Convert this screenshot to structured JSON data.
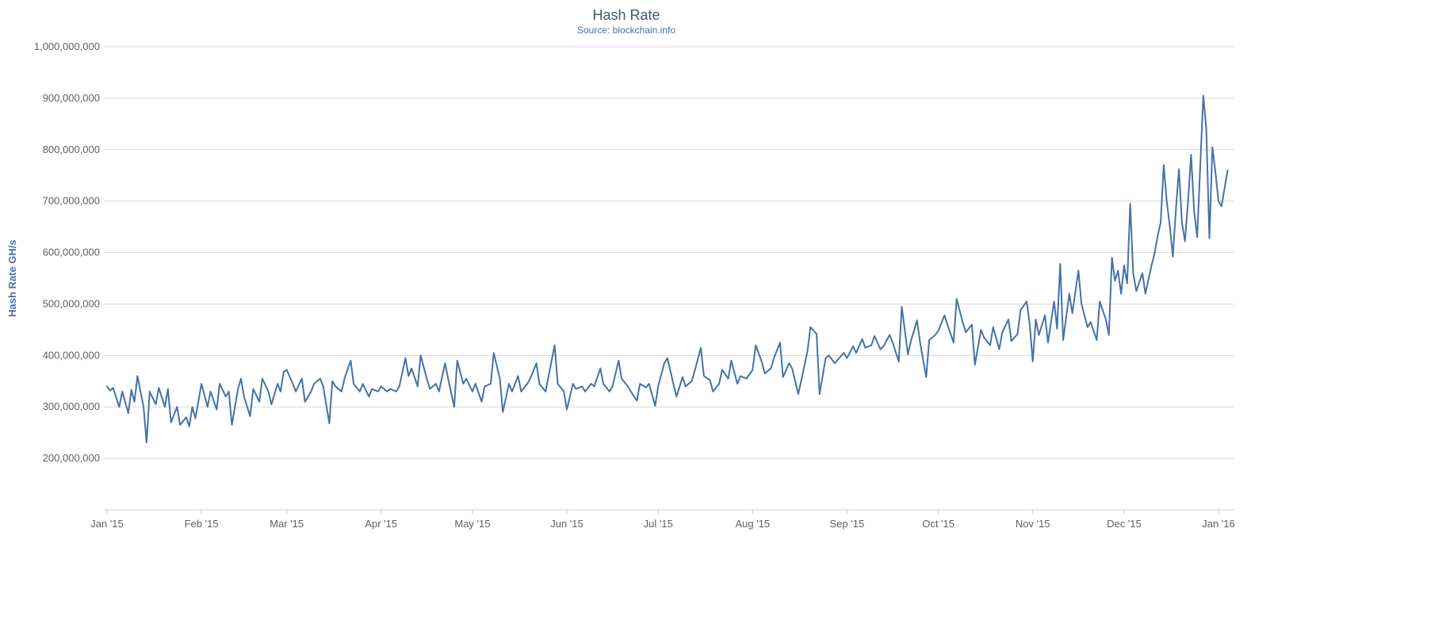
{
  "colors": {
    "series": "#4572A7",
    "title": "#3E576F",
    "subtitle": "#4572A7",
    "axis_text": "#606060",
    "grid": "#D8D8D8",
    "axis_line": "#C0D0E0",
    "y_axis_title": "#4572A7"
  },
  "chart_data": {
    "type": "line",
    "title": "Hash Rate",
    "subtitle": "Source: blockchain.info",
    "xlabel": "",
    "ylabel": "Hash Rate GH/s",
    "ylim": [
      100000000.0,
      1000000000.0
    ],
    "grid": true,
    "legend": false,
    "x_unit": "days since 2015-01-01",
    "y_unit": "GH/s",
    "y_ticks": [
      {
        "value": 200000000.0,
        "label": "200,000,000"
      },
      {
        "value": 300000000.0,
        "label": "300,000,000"
      },
      {
        "value": 400000000.0,
        "label": "400,000,000"
      },
      {
        "value": 500000000.0,
        "label": "500,000,000"
      },
      {
        "value": 600000000.0,
        "label": "600,000,000"
      },
      {
        "value": 700000000.0,
        "label": "700,000,000"
      },
      {
        "value": 800000000.0,
        "label": "800,000,000"
      },
      {
        "value": 900000000.0,
        "label": "900,000,000"
      },
      {
        "value": 1000000000.0,
        "label": "1,000,000,000"
      }
    ],
    "x_ticks": [
      {
        "day": 0,
        "label": "Jan '15"
      },
      {
        "day": 31,
        "label": "Feb '15"
      },
      {
        "day": 59,
        "label": "Mar '15"
      },
      {
        "day": 90,
        "label": "Apr '15"
      },
      {
        "day": 120,
        "label": "May '15"
      },
      {
        "day": 151,
        "label": "Jun '15"
      },
      {
        "day": 181,
        "label": "Jul '15"
      },
      {
        "day": 212,
        "label": "Aug '15"
      },
      {
        "day": 243,
        "label": "Sep '15"
      },
      {
        "day": 273,
        "label": "Oct '15"
      },
      {
        "day": 304,
        "label": "Nov '15"
      },
      {
        "day": 334,
        "label": "Dec '15"
      },
      {
        "day": 365,
        "label": "Jan '16"
      }
    ],
    "series": [
      {
        "name": "Hash Rate",
        "points": [
          [
            0,
            340000000.0
          ],
          [
            1,
            332000000.0
          ],
          [
            2,
            337000000.0
          ],
          [
            4,
            300000000.0
          ],
          [
            5,
            330000000.0
          ],
          [
            7,
            288000000.0
          ],
          [
            8,
            333000000.0
          ],
          [
            9,
            310000000.0
          ],
          [
            10,
            360000000.0
          ],
          [
            12,
            300000000.0
          ],
          [
            13,
            231000000.0
          ],
          [
            14,
            330000000.0
          ],
          [
            16,
            305000000.0
          ],
          [
            17,
            337000000.0
          ],
          [
            19,
            300000000.0
          ],
          [
            20,
            335000000.0
          ],
          [
            21,
            270000000.0
          ],
          [
            23,
            300000000.0
          ],
          [
            24,
            265000000.0
          ],
          [
            26,
            280000000.0
          ],
          [
            27,
            262000000.0
          ],
          [
            28,
            300000000.0
          ],
          [
            29,
            278000000.0
          ],
          [
            30,
            310000000.0
          ],
          [
            31,
            345000000.0
          ],
          [
            33,
            300000000.0
          ],
          [
            34,
            330000000.0
          ],
          [
            36,
            295000000.0
          ],
          [
            37,
            345000000.0
          ],
          [
            39,
            320000000.0
          ],
          [
            40,
            330000000.0
          ],
          [
            41,
            265000000.0
          ],
          [
            43,
            335000000.0
          ],
          [
            44,
            355000000.0
          ],
          [
            45,
            320000000.0
          ],
          [
            47,
            282000000.0
          ],
          [
            48,
            335000000.0
          ],
          [
            50,
            310000000.0
          ],
          [
            51,
            355000000.0
          ],
          [
            53,
            330000000.0
          ],
          [
            54,
            305000000.0
          ],
          [
            56,
            345000000.0
          ],
          [
            57,
            330000000.0
          ],
          [
            58,
            368000000.0
          ],
          [
            59,
            372000000.0
          ],
          [
            61,
            345000000.0
          ],
          [
            62,
            330000000.0
          ],
          [
            64,
            355000000.0
          ],
          [
            65,
            310000000.0
          ],
          [
            67,
            330000000.0
          ],
          [
            68,
            345000000.0
          ],
          [
            70,
            355000000.0
          ],
          [
            71,
            340000000.0
          ],
          [
            73,
            268000000.0
          ],
          [
            74,
            350000000.0
          ],
          [
            75,
            340000000.0
          ],
          [
            77,
            330000000.0
          ],
          [
            78,
            355000000.0
          ],
          [
            80,
            390000000.0
          ],
          [
            81,
            345000000.0
          ],
          [
            83,
            330000000.0
          ],
          [
            84,
            345000000.0
          ],
          [
            86,
            320000000.0
          ],
          [
            87,
            335000000.0
          ],
          [
            89,
            330000000.0
          ],
          [
            90,
            340000000.0
          ],
          [
            92,
            330000000.0
          ],
          [
            93,
            335000000.0
          ],
          [
            95,
            330000000.0
          ],
          [
            96,
            340000000.0
          ],
          [
            98,
            395000000.0
          ],
          [
            99,
            360000000.0
          ],
          [
            100,
            375000000.0
          ],
          [
            102,
            340000000.0
          ],
          [
            103,
            400000000.0
          ],
          [
            105,
            355000000.0
          ],
          [
            106,
            335000000.0
          ],
          [
            108,
            345000000.0
          ],
          [
            109,
            330000000.0
          ],
          [
            111,
            385000000.0
          ],
          [
            112,
            355000000.0
          ],
          [
            114,
            300000000.0
          ],
          [
            115,
            390000000.0
          ],
          [
            117,
            345000000.0
          ],
          [
            118,
            355000000.0
          ],
          [
            120,
            330000000.0
          ],
          [
            121,
            345000000.0
          ],
          [
            123,
            310000000.0
          ],
          [
            124,
            340000000.0
          ],
          [
            126,
            345000000.0
          ],
          [
            127,
            405000000.0
          ],
          [
            129,
            355000000.0
          ],
          [
            130,
            290000000.0
          ],
          [
            132,
            345000000.0
          ],
          [
            133,
            330000000.0
          ],
          [
            135,
            360000000.0
          ],
          [
            136,
            330000000.0
          ],
          [
            138,
            345000000.0
          ],
          [
            139,
            355000000.0
          ],
          [
            141,
            385000000.0
          ],
          [
            142,
            345000000.0
          ],
          [
            144,
            330000000.0
          ],
          [
            145,
            360000000.0
          ],
          [
            147,
            420000000.0
          ],
          [
            148,
            345000000.0
          ],
          [
            150,
            330000000.0
          ],
          [
            151,
            295000000.0
          ],
          [
            153,
            345000000.0
          ],
          [
            154,
            335000000.0
          ],
          [
            156,
            340000000.0
          ],
          [
            157,
            330000000.0
          ],
          [
            159,
            345000000.0
          ],
          [
            160,
            340000000.0
          ],
          [
            162,
            375000000.0
          ],
          [
            163,
            345000000.0
          ],
          [
            165,
            330000000.0
          ],
          [
            166,
            340000000.0
          ],
          [
            168,
            390000000.0
          ],
          [
            169,
            355000000.0
          ],
          [
            171,
            340000000.0
          ],
          [
            172,
            330000000.0
          ],
          [
            174,
            312000000.0
          ],
          [
            175,
            345000000.0
          ],
          [
            177,
            338000000.0
          ],
          [
            178,
            345000000.0
          ],
          [
            180,
            302000000.0
          ],
          [
            181,
            340000000.0
          ],
          [
            183,
            385000000.0
          ],
          [
            184,
            395000000.0
          ],
          [
            186,
            345000000.0
          ],
          [
            187,
            320000000.0
          ],
          [
            189,
            358000000.0
          ],
          [
            190,
            340000000.0
          ],
          [
            192,
            350000000.0
          ],
          [
            193,
            370000000.0
          ],
          [
            195,
            415000000.0
          ],
          [
            196,
            360000000.0
          ],
          [
            198,
            352000000.0
          ],
          [
            199,
            330000000.0
          ],
          [
            201,
            345000000.0
          ],
          [
            202,
            372000000.0
          ],
          [
            204,
            355000000.0
          ],
          [
            205,
            390000000.0
          ],
          [
            207,
            345000000.0
          ],
          [
            208,
            360000000.0
          ],
          [
            210,
            355000000.0
          ],
          [
            212,
            372000000.0
          ],
          [
            213,
            420000000.0
          ],
          [
            215,
            388000000.0
          ],
          [
            216,
            365000000.0
          ],
          [
            218,
            375000000.0
          ],
          [
            219,
            395000000.0
          ],
          [
            221,
            425000000.0
          ],
          [
            222,
            358000000.0
          ],
          [
            224,
            385000000.0
          ],
          [
            225,
            375000000.0
          ],
          [
            227,
            325000000.0
          ],
          [
            228,
            352000000.0
          ],
          [
            230,
            408000000.0
          ],
          [
            231,
            455000000.0
          ],
          [
            233,
            442000000.0
          ],
          [
            234,
            325000000.0
          ],
          [
            236,
            395000000.0
          ],
          [
            237,
            400000000.0
          ],
          [
            239,
            385000000.0
          ],
          [
            240,
            392000000.0
          ],
          [
            242,
            405000000.0
          ],
          [
            243,
            395000000.0
          ],
          [
            245,
            418000000.0
          ],
          [
            246,
            405000000.0
          ],
          [
            248,
            432000000.0
          ],
          [
            249,
            415000000.0
          ],
          [
            251,
            420000000.0
          ],
          [
            252,
            438000000.0
          ],
          [
            254,
            412000000.0
          ],
          [
            255,
            418000000.0
          ],
          [
            257,
            440000000.0
          ],
          [
            258,
            425000000.0
          ],
          [
            260,
            388000000.0
          ],
          [
            261,
            495000000.0
          ],
          [
            263,
            402000000.0
          ],
          [
            264,
            428000000.0
          ],
          [
            266,
            468000000.0
          ],
          [
            267,
            425000000.0
          ],
          [
            269,
            358000000.0
          ],
          [
            270,
            430000000.0
          ],
          [
            272,
            440000000.0
          ],
          [
            273,
            448000000.0
          ],
          [
            275,
            478000000.0
          ],
          [
            276,
            460000000.0
          ],
          [
            278,
            425000000.0
          ],
          [
            279,
            510000000.0
          ],
          [
            281,
            465000000.0
          ],
          [
            282,
            445000000.0
          ],
          [
            284,
            460000000.0
          ],
          [
            285,
            382000000.0
          ],
          [
            287,
            450000000.0
          ],
          [
            288,
            435000000.0
          ],
          [
            290,
            420000000.0
          ],
          [
            291,
            455000000.0
          ],
          [
            293,
            412000000.0
          ],
          [
            294,
            445000000.0
          ],
          [
            296,
            470000000.0
          ],
          [
            297,
            428000000.0
          ],
          [
            299,
            442000000.0
          ],
          [
            300,
            488000000.0
          ],
          [
            302,
            505000000.0
          ],
          [
            303,
            460000000.0
          ],
          [
            304,
            388000000.0
          ],
          [
            305,
            470000000.0
          ],
          [
            306,
            440000000.0
          ],
          [
            308,
            478000000.0
          ],
          [
            309,
            425000000.0
          ],
          [
            311,
            505000000.0
          ],
          [
            312,
            452000000.0
          ],
          [
            313,
            578000000.0
          ],
          [
            314,
            430000000.0
          ],
          [
            316,
            520000000.0
          ],
          [
            317,
            482000000.0
          ],
          [
            319,
            565000000.0
          ],
          [
            320,
            500000000.0
          ],
          [
            322,
            455000000.0
          ],
          [
            323,
            465000000.0
          ],
          [
            325,
            430000000.0
          ],
          [
            326,
            505000000.0
          ],
          [
            328,
            470000000.0
          ],
          [
            329,
            440000000.0
          ],
          [
            330,
            590000000.0
          ],
          [
            331,
            545000000.0
          ],
          [
            332,
            565000000.0
          ],
          [
            333,
            520000000.0
          ],
          [
            334,
            575000000.0
          ],
          [
            335,
            540000000.0
          ],
          [
            336,
            695000000.0
          ],
          [
            337,
            560000000.0
          ],
          [
            338,
            525000000.0
          ],
          [
            340,
            560000000.0
          ],
          [
            341,
            520000000.0
          ],
          [
            343,
            575000000.0
          ],
          [
            344,
            598000000.0
          ],
          [
            345,
            632000000.0
          ],
          [
            346,
            658000000.0
          ],
          [
            347,
            770000000.0
          ],
          [
            348,
            700000000.0
          ],
          [
            349,
            652000000.0
          ],
          [
            350,
            592000000.0
          ],
          [
            351,
            682000000.0
          ],
          [
            352,
            762000000.0
          ],
          [
            353,
            658000000.0
          ],
          [
            354,
            622000000.0
          ],
          [
            355,
            700000000.0
          ],
          [
            356,
            790000000.0
          ],
          [
            357,
            680000000.0
          ],
          [
            358,
            630000000.0
          ],
          [
            360,
            905000000.0
          ],
          [
            361,
            840000000.0
          ],
          [
            362,
            628000000.0
          ],
          [
            363,
            805000000.0
          ],
          [
            364,
            755000000.0
          ],
          [
            365,
            700000000.0
          ],
          [
            366,
            690000000.0
          ],
          [
            368,
            760000000.0
          ]
        ]
      }
    ]
  }
}
